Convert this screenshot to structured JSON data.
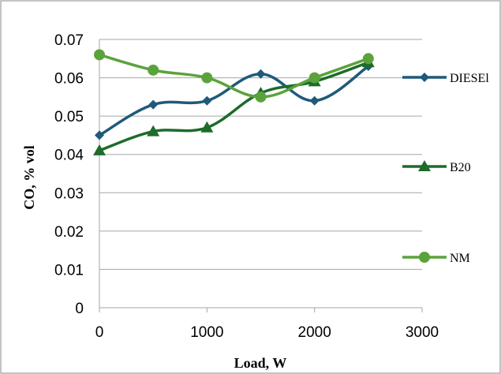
{
  "chart_data": {
    "type": "line",
    "title": "",
    "xlabel": "Load, W",
    "ylabel": "CO, % vol",
    "xlim": [
      0,
      3000
    ],
    "ylim": [
      0,
      0.07
    ],
    "xticks": [
      0,
      1000,
      2000,
      3000
    ],
    "yticks": [
      0,
      0.01,
      0.02,
      0.03,
      0.04,
      0.05,
      0.06,
      0.07
    ],
    "xtick_labels": [
      "0",
      "1000",
      "2000",
      "3000"
    ],
    "ytick_labels": [
      "0",
      "0.01",
      "0.02",
      "0.03",
      "0.04",
      "0.05",
      "0.06",
      "0.07"
    ],
    "grid": "horizontal",
    "legend": "right",
    "series": [
      {
        "name": "DIESEl",
        "color": "#1f5a7a",
        "marker": "diamond",
        "x": [
          0,
          500,
          1000,
          1500,
          2000,
          2500
        ],
        "y": [
          0.045,
          0.053,
          0.054,
          0.061,
          0.054,
          0.063
        ]
      },
      {
        "name": "B20",
        "color": "#1e6b2a",
        "marker": "triangle",
        "x": [
          0,
          500,
          1000,
          1500,
          2000,
          2500
        ],
        "y": [
          0.041,
          0.046,
          0.047,
          0.056,
          0.059,
          0.064
        ]
      },
      {
        "name": "NM",
        "color": "#5aa33c",
        "marker": "circle",
        "x": [
          0,
          500,
          1000,
          1500,
          2000,
          2500
        ],
        "y": [
          0.066,
          0.062,
          0.06,
          0.055,
          0.06,
          0.065
        ]
      }
    ]
  }
}
